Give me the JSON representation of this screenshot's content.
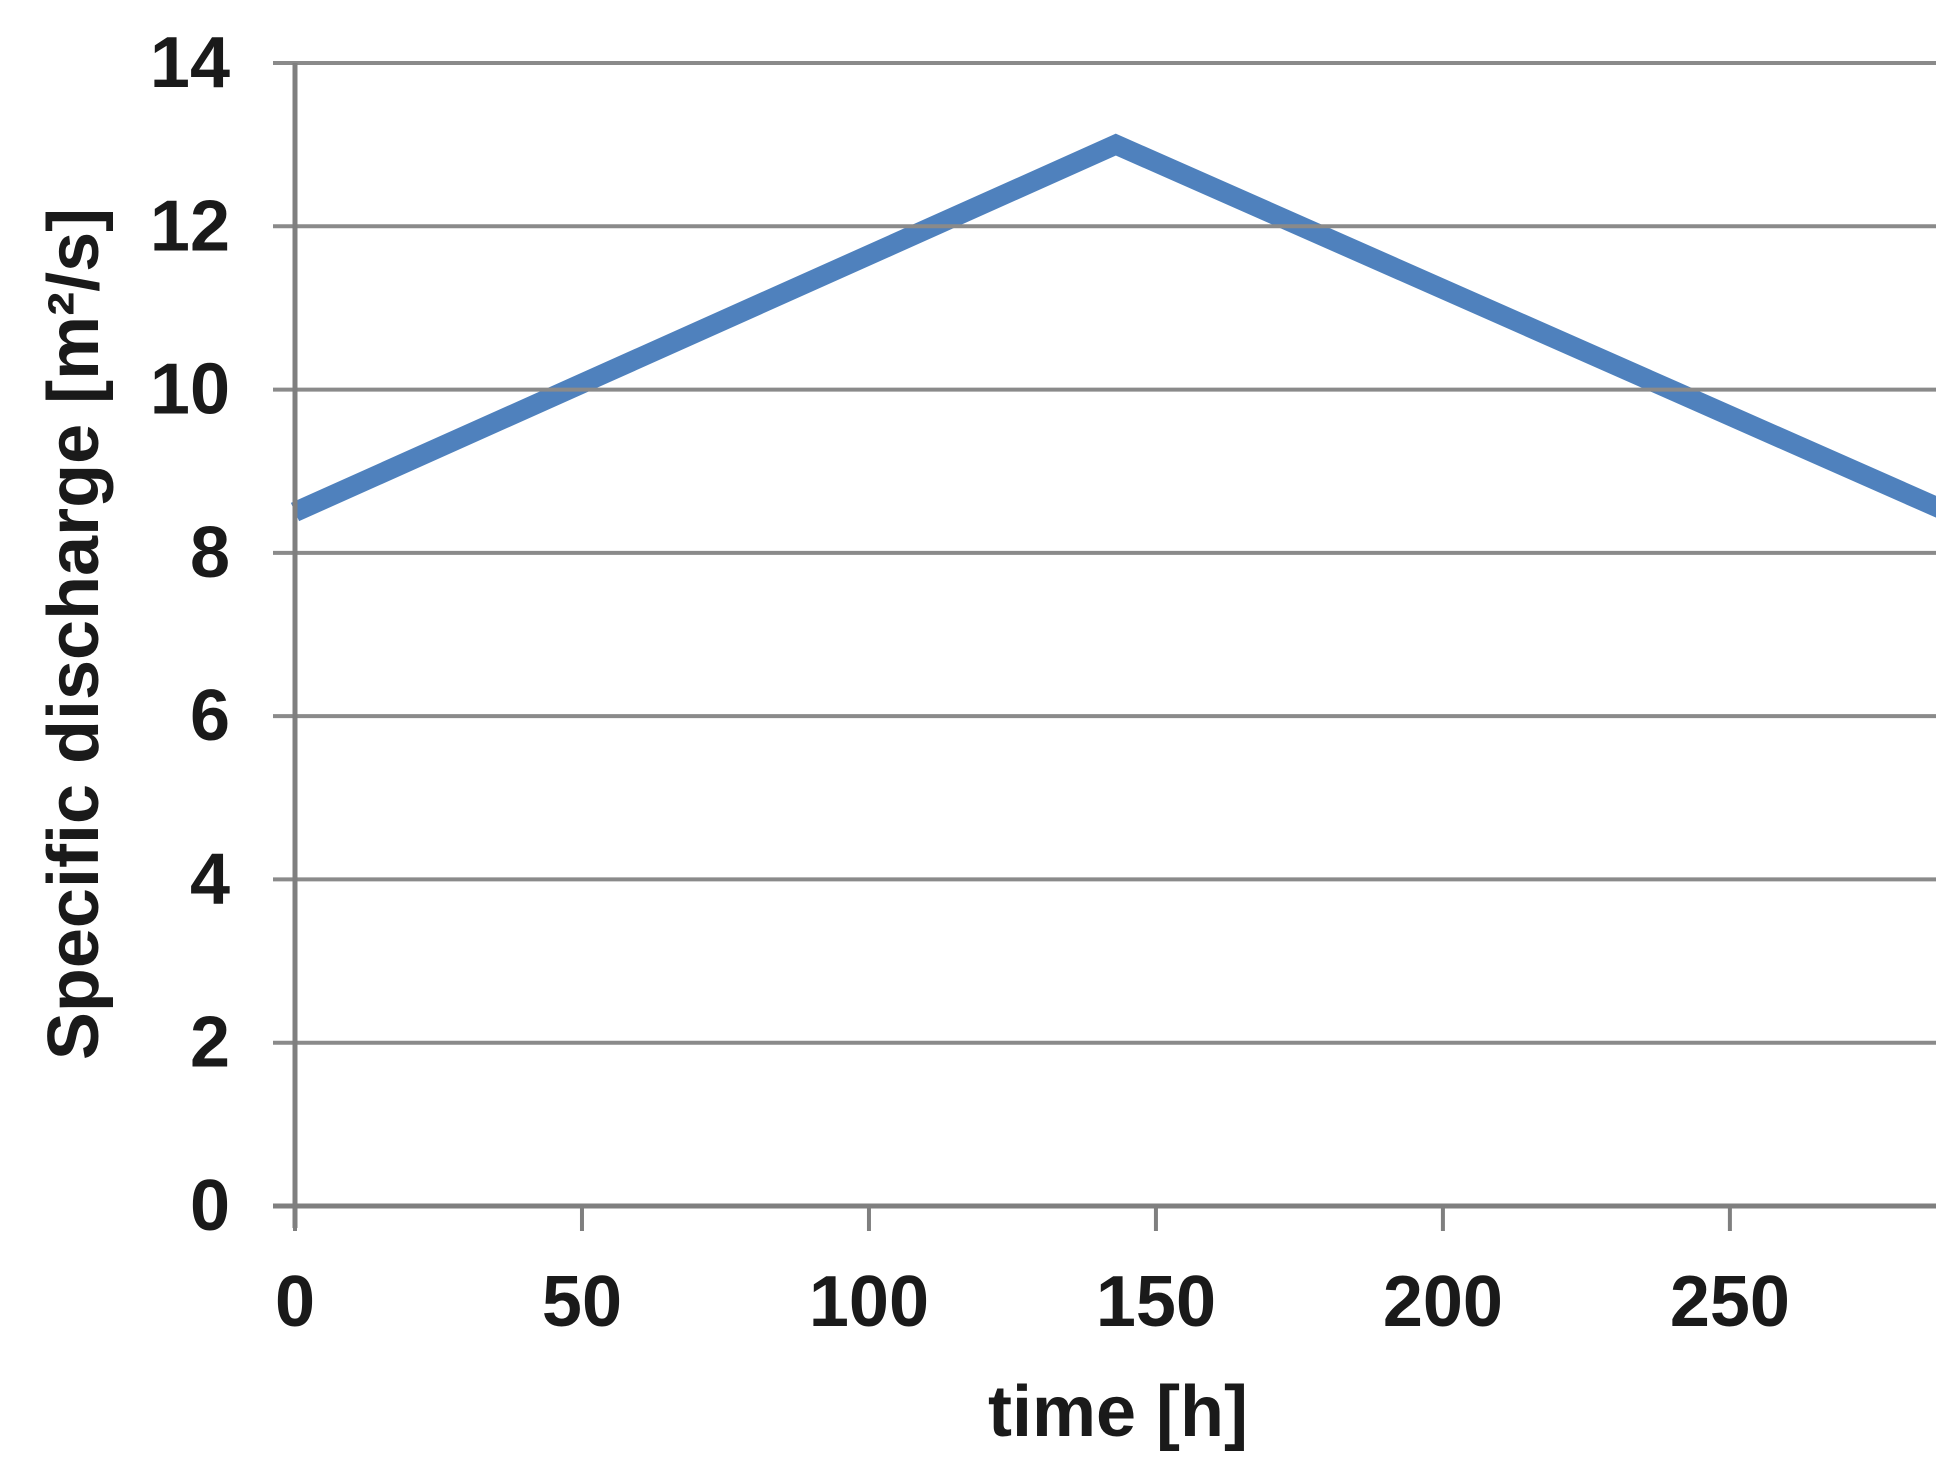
{
  "chart_data": {
    "type": "line",
    "title": "",
    "xlabel": "time [h]",
    "ylabel": "Specific discharge [m²/s]",
    "xlim": [
      0,
      288
    ],
    "ylim": [
      0,
      14
    ],
    "x_ticks": [
      0,
      50,
      100,
      150,
      200,
      250
    ],
    "y_ticks": [
      0,
      2,
      4,
      6,
      8,
      10,
      12,
      14
    ],
    "grid": "horizontal-gridlines-over-series",
    "legend": "none",
    "series": [
      {
        "name": "specific discharge",
        "color": "#4f81bd",
        "points": [
          [
            0,
            8.5
          ],
          [
            143,
            13.0
          ],
          [
            288,
            8.5
          ]
        ]
      }
    ],
    "colors": {
      "line": "#4f81bd",
      "grid": "#8a8a8a",
      "axis": "#7f7f7f",
      "text": "#1a1a1a",
      "background": "#ffffff"
    }
  }
}
